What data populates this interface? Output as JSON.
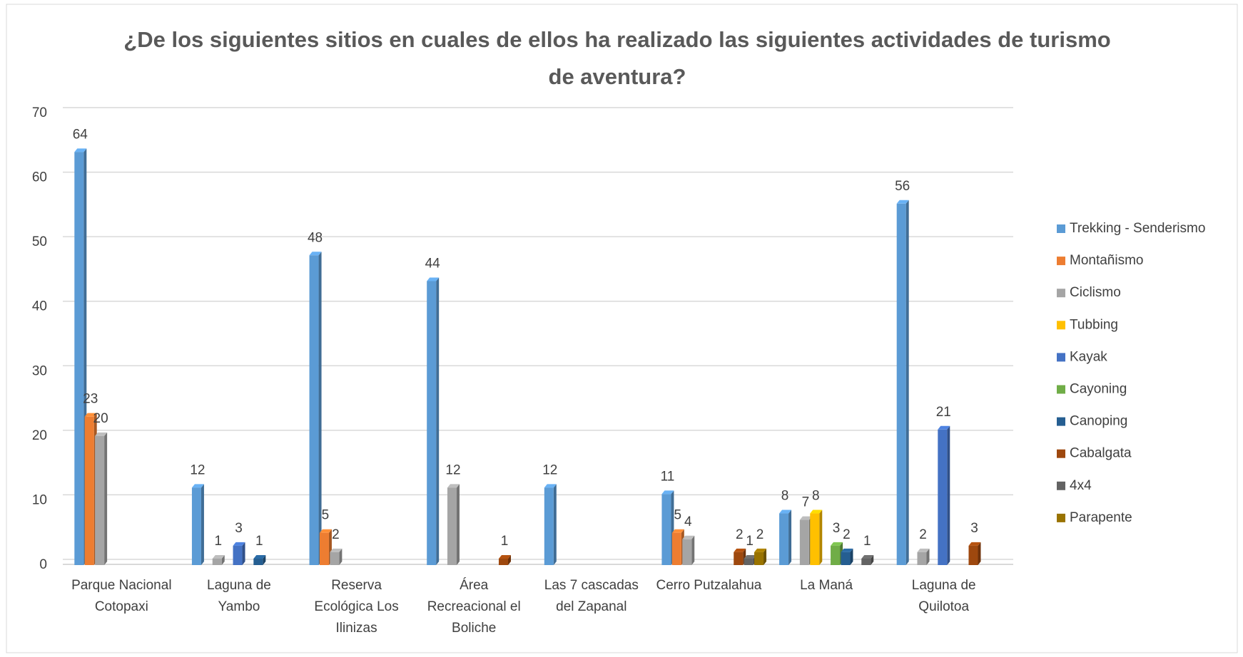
{
  "chart_data": {
    "type": "bar",
    "title": "¿De los siguientes sitios en cuales de ellos ha realizado las siguientes actividades de turismo de aventura?",
    "categories": [
      "Parque Nacional Cotopaxi",
      "Laguna de Yambo",
      "Reserva Ecológica Los Ilinizas",
      "Área Recreacional el Boliche",
      "Las 7 cascadas del Zapanal",
      "Cerro Putzalahua",
      "La Maná",
      "Laguna de Quilotoa"
    ],
    "series": [
      {
        "name": "Trekking - Senderismo",
        "color": "#5b9bd5",
        "values": [
          64,
          12,
          48,
          44,
          12,
          11,
          8,
          56
        ]
      },
      {
        "name": "Montañismo",
        "color": "#ed7d31",
        "values": [
          23,
          null,
          5,
          null,
          null,
          5,
          null,
          null
        ]
      },
      {
        "name": "Ciclismo",
        "color": "#a5a5a5",
        "values": [
          20,
          1,
          2,
          12,
          null,
          4,
          7,
          2
        ]
      },
      {
        "name": "Tubbing",
        "color": "#ffc000",
        "values": [
          null,
          null,
          null,
          null,
          null,
          null,
          8,
          null
        ]
      },
      {
        "name": "Kayak",
        "color": "#4472c4",
        "values": [
          null,
          3,
          null,
          null,
          null,
          null,
          null,
          21
        ]
      },
      {
        "name": "Cayoning",
        "color": "#70ad47",
        "values": [
          null,
          null,
          null,
          null,
          null,
          null,
          3,
          null
        ]
      },
      {
        "name": "Canoping",
        "color": "#255e91",
        "values": [
          null,
          1,
          null,
          null,
          null,
          null,
          2,
          null
        ]
      },
      {
        "name": "Cabalgata",
        "color": "#9e480e",
        "values": [
          null,
          null,
          null,
          1,
          null,
          2,
          null,
          3
        ]
      },
      {
        "name": "4x4",
        "color": "#636363",
        "values": [
          null,
          null,
          null,
          null,
          null,
          1,
          1,
          null
        ]
      },
      {
        "name": "Parapente",
        "color": "#997300",
        "values": [
          null,
          null,
          null,
          null,
          null,
          2,
          null,
          null
        ]
      }
    ],
    "ylim": [
      0,
      70
    ],
    "yticks": [
      0,
      10,
      20,
      30,
      40,
      50,
      60,
      70
    ],
    "grid": true,
    "legend": "right"
  }
}
